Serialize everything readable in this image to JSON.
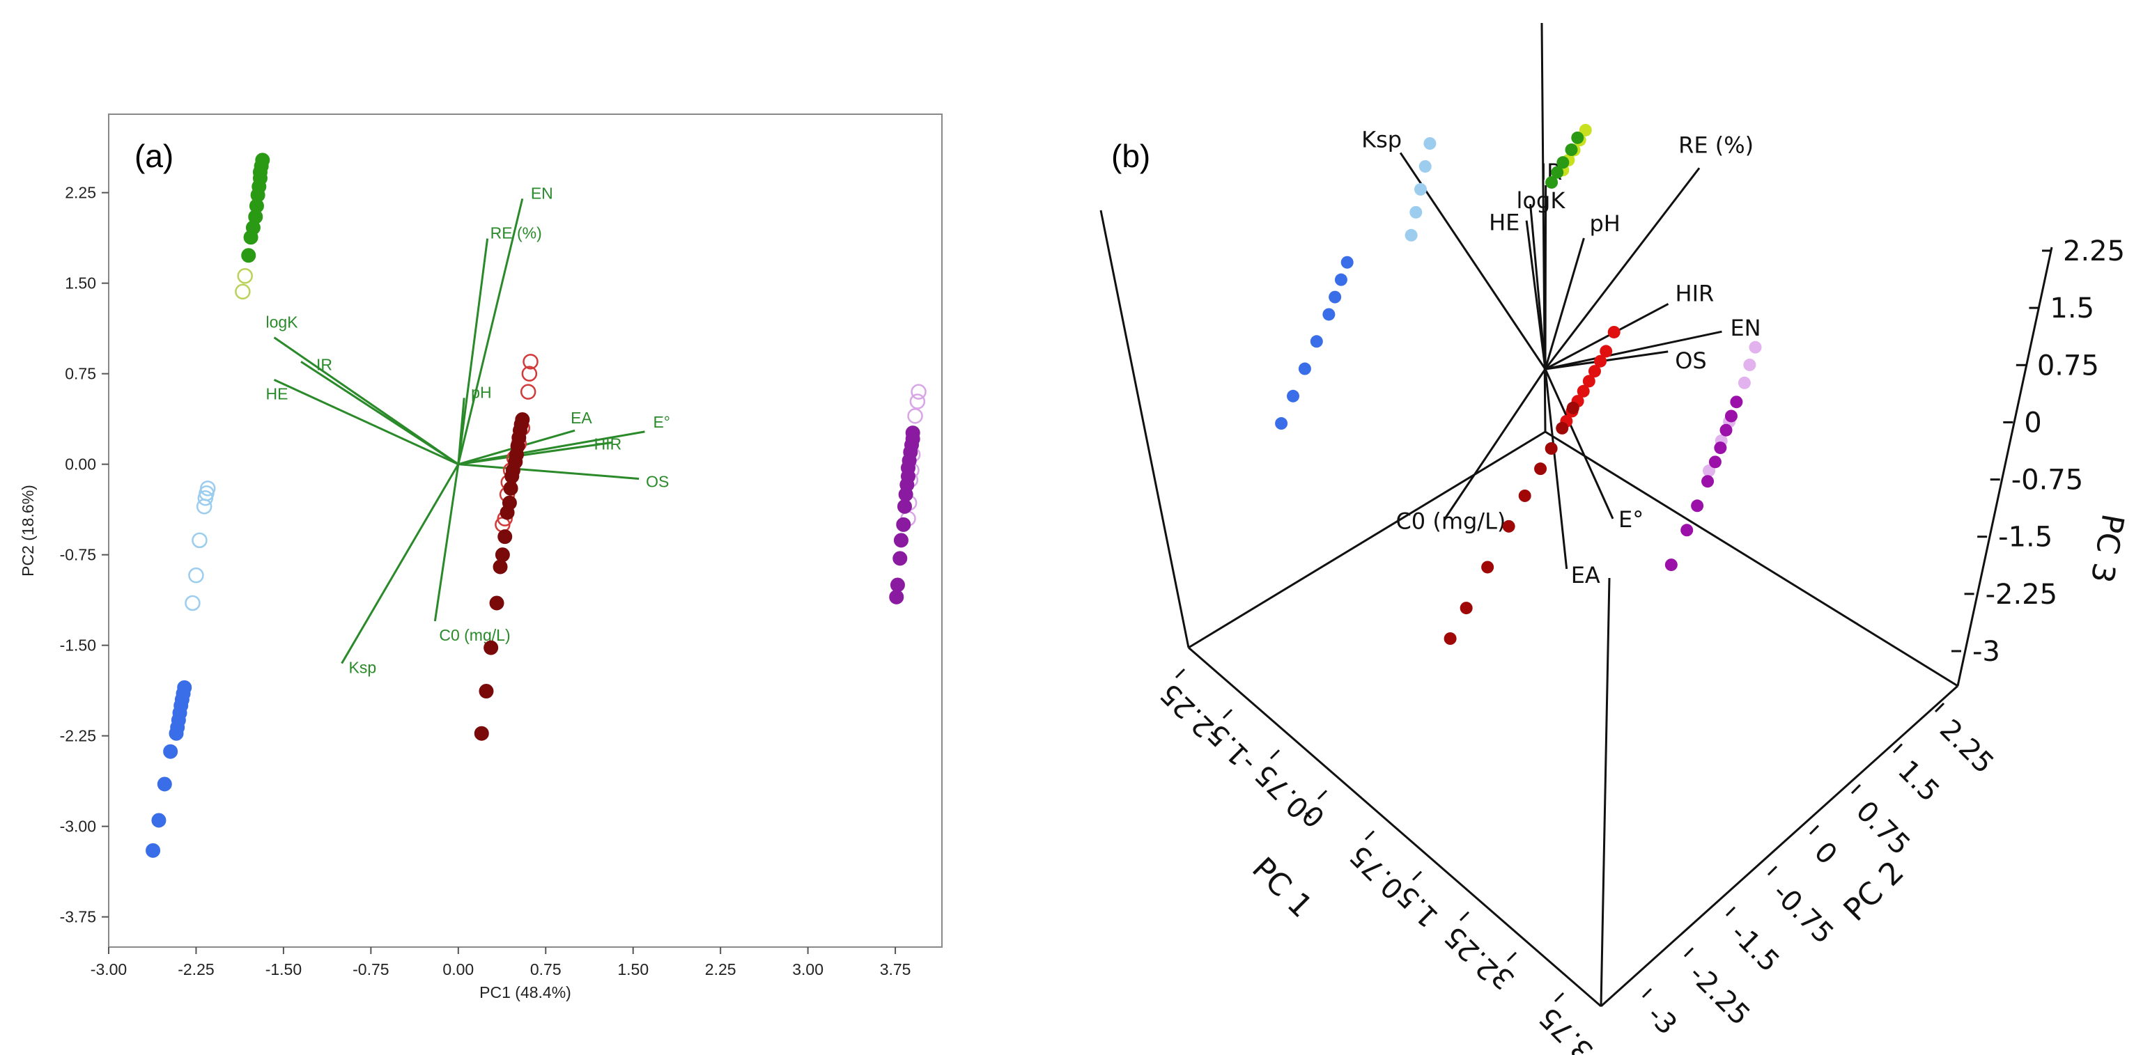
{
  "panel_a_label": "(a)",
  "panel_b_label": "(b)",
  "colors": {
    "green": "#2a9a14",
    "lightgreen": "#b9d25a",
    "red": "#d23a3a",
    "darkred": "#7a0a0a",
    "purple": "#8a1aa0",
    "lightpurple": "#d8a6e6",
    "blue": "#3a6ee8",
    "lightblue": "#9ccdef",
    "loading_green": "#2a8a2a"
  },
  "chart_data": [
    {
      "type": "scatter",
      "title": "(a)",
      "xlabel": "PC1 (48.4%)",
      "ylabel": "PC2 (18.6%)",
      "xlim": [
        -3.0,
        4.15
      ],
      "ylim": [
        -4.0,
        2.9
      ],
      "xticks": [
        "-3.00",
        "-2.25",
        "-1.50",
        "-0.75",
        "0.00",
        "0.75",
        "1.50",
        "2.25",
        "3.00",
        "3.75"
      ],
      "xtick_values": [
        -3.0,
        -2.25,
        -1.5,
        -0.75,
        0.0,
        0.75,
        1.5,
        2.25,
        3.0,
        3.75
      ],
      "yticks": [
        "2.25",
        "1.50",
        "0.75",
        "0.00",
        "-0.75",
        "-1.50",
        "-2.25",
        "-3.00",
        "-3.75"
      ],
      "ytick_values": [
        2.25,
        1.5,
        0.75,
        0.0,
        -0.75,
        -1.5,
        -2.25,
        -3.0,
        -3.75
      ],
      "loadings": [
        {
          "label": "EN",
          "x": 0.55,
          "y": 2.2
        },
        {
          "label": "RE (%)",
          "x": 0.25,
          "y": 1.87
        },
        {
          "label": "logK",
          "x": -1.58,
          "y": 1.05
        },
        {
          "label": "IR",
          "x": -1.35,
          "y": 0.85
        },
        {
          "label": "HE",
          "x": -1.58,
          "y": 0.7
        },
        {
          "label": "pH",
          "x": 0.05,
          "y": 0.55
        },
        {
          "label": "EA",
          "x": 1.0,
          "y": 0.28
        },
        {
          "label": "E°",
          "x": 1.6,
          "y": 0.27
        },
        {
          "label": "HIR",
          "x": 1.32,
          "y": 0.18
        },
        {
          "label": "OS",
          "x": 1.55,
          "y": -0.12
        },
        {
          "label": "C0 (mg/L)",
          "x": -0.2,
          "y": -1.3
        },
        {
          "label": "Ksp",
          "x": -1.0,
          "y": -1.65
        }
      ],
      "series": [
        {
          "name": "green",
          "color": "#2a9a14",
          "filled": true,
          "points": [
            [
              -1.68,
              2.52
            ],
            [
              -1.69,
              2.47
            ],
            [
              -1.7,
              2.42
            ],
            [
              -1.7,
              2.37
            ],
            [
              -1.71,
              2.3
            ],
            [
              -1.72,
              2.23
            ],
            [
              -1.73,
              2.14
            ],
            [
              -1.74,
              2.05
            ],
            [
              -1.76,
              1.96
            ],
            [
              -1.78,
              1.88
            ],
            [
              -1.8,
              1.73
            ]
          ]
        },
        {
          "name": "green-open",
          "color": "#b9d25a",
          "filled": false,
          "points": [
            [
              -1.83,
              1.56
            ],
            [
              -1.85,
              1.43
            ]
          ]
        },
        {
          "name": "red-open",
          "color": "#d23a3a",
          "filled": false,
          "points": [
            [
              0.62,
              0.85
            ],
            [
              0.61,
              0.75
            ],
            [
              0.6,
              0.6
            ],
            [
              0.55,
              0.3
            ],
            [
              0.52,
              0.17
            ],
            [
              0.48,
              0.05
            ],
            [
              0.45,
              -0.05
            ],
            [
              0.43,
              -0.15
            ],
            [
              0.42,
              -0.25
            ],
            [
              0.4,
              -0.45
            ],
            [
              0.38,
              -0.5
            ]
          ]
        },
        {
          "name": "red-dark",
          "color": "#7a0a0a",
          "filled": true,
          "points": [
            [
              0.55,
              0.37
            ],
            [
              0.54,
              0.33
            ],
            [
              0.53,
              0.28
            ],
            [
              0.52,
              0.22
            ],
            [
              0.51,
              0.15
            ],
            [
              0.5,
              0.08
            ],
            [
              0.49,
              0.02
            ],
            [
              0.47,
              -0.05
            ],
            [
              0.46,
              -0.1
            ],
            [
              0.45,
              -0.2
            ],
            [
              0.44,
              -0.32
            ],
            [
              0.42,
              -0.4
            ],
            [
              0.4,
              -0.6
            ],
            [
              0.38,
              -0.75
            ],
            [
              0.36,
              -0.85
            ],
            [
              0.33,
              -1.15
            ],
            [
              0.28,
              -1.52
            ],
            [
              0.24,
              -1.88
            ],
            [
              0.2,
              -2.23
            ]
          ]
        },
        {
          "name": "purple-open",
          "color": "#d8a6e6",
          "filled": false,
          "points": [
            [
              3.95,
              0.6
            ],
            [
              3.94,
              0.52
            ],
            [
              3.92,
              0.4
            ],
            [
              3.9,
              0.08
            ],
            [
              3.89,
              -0.05
            ],
            [
              3.88,
              -0.13
            ],
            [
              3.87,
              -0.32
            ],
            [
              3.86,
              -0.45
            ]
          ]
        },
        {
          "name": "purple",
          "color": "#8a1aa0",
          "filled": true,
          "points": [
            [
              3.9,
              0.26
            ],
            [
              3.9,
              0.21
            ],
            [
              3.89,
              0.16
            ],
            [
              3.88,
              0.1
            ],
            [
              3.87,
              0.03
            ],
            [
              3.86,
              -0.03
            ],
            [
              3.86,
              -0.1
            ],
            [
              3.85,
              -0.17
            ],
            [
              3.84,
              -0.25
            ],
            [
              3.83,
              -0.35
            ],
            [
              3.82,
              -0.5
            ],
            [
              3.8,
              -0.63
            ],
            [
              3.79,
              -0.78
            ],
            [
              3.77,
              -1.0
            ],
            [
              3.76,
              -1.1
            ]
          ]
        },
        {
          "name": "lightblue-open",
          "color": "#9ccdef",
          "filled": false,
          "points": [
            [
              -2.15,
              -0.2
            ],
            [
              -2.16,
              -0.24
            ],
            [
              -2.17,
              -0.28
            ],
            [
              -2.18,
              -0.35
            ],
            [
              -2.22,
              -0.63
            ],
            [
              -2.25,
              -0.92
            ],
            [
              -2.28,
              -1.15
            ]
          ]
        },
        {
          "name": "blue",
          "color": "#3a6ee8",
          "filled": true,
          "points": [
            [
              -2.35,
              -1.85
            ],
            [
              -2.36,
              -1.9
            ],
            [
              -2.37,
              -1.95
            ],
            [
              -2.38,
              -2.0
            ],
            [
              -2.39,
              -2.06
            ],
            [
              -2.4,
              -2.12
            ],
            [
              -2.41,
              -2.18
            ],
            [
              -2.42,
              -2.23
            ],
            [
              -2.47,
              -2.38
            ],
            [
              -2.52,
              -2.65
            ],
            [
              -2.57,
              -2.95
            ],
            [
              -2.62,
              -3.2
            ]
          ]
        }
      ]
    },
    {
      "type": "scatter",
      "title": "(b)",
      "xlabel": "PC 1",
      "ylabel": "PC 2",
      "zlabel": "PC 3",
      "pc1_ticks": [
        "-2.25",
        "-1.5",
        "-0.75",
        "0",
        "0.75",
        "1.5",
        "2.25",
        "3",
        "3.75"
      ],
      "pc1_tick_values": [
        -2.25,
        -1.5,
        -0.75,
        0,
        0.75,
        1.5,
        2.25,
        3,
        3.75
      ],
      "pc2_ticks": [
        "2.25",
        "1.5",
        "0.75",
        "0",
        "-0.75",
        "-1.5",
        "-2.25",
        "-3"
      ],
      "pc2_tick_values": [
        2.25,
        1.5,
        0.75,
        0,
        -0.75,
        -1.5,
        -2.25,
        -3
      ],
      "pc3_ticks": [
        "2.25",
        "1.5",
        "0.75",
        "0",
        "-0.75",
        "-1.5",
        "-2.25",
        "-3"
      ],
      "pc3_tick_values": [
        2.25,
        1.5,
        0.75,
        0,
        -0.75,
        -1.5,
        -2.25,
        -3
      ],
      "loadings": [
        {
          "label": "RE (%)",
          "x": 1.0,
          "y": 1.0,
          "z": 1.6
        },
        {
          "label": "Ksp",
          "x": -1.6,
          "y": -0.3,
          "z": 1.2
        },
        {
          "label": "IR",
          "x": -0.2,
          "y": 0.2,
          "z": 1.3
        },
        {
          "label": "logK",
          "x": -0.3,
          "y": 0.1,
          "z": 1.15
        },
        {
          "label": "HE",
          "x": -0.35,
          "y": 0.1,
          "z": 1.0
        },
        {
          "label": "pH",
          "x": 0.2,
          "y": 0.3,
          "z": 1.0
        },
        {
          "label": "HIR",
          "x": 0.9,
          "y": 0.7,
          "z": 0.6
        },
        {
          "label": "EN",
          "x": 1.4,
          "y": 0.9,
          "z": 0.5
        },
        {
          "label": "OS",
          "x": 1.0,
          "y": 0.6,
          "z": 0.3
        },
        {
          "label": "C0 (mg/L)",
          "x": -0.4,
          "y": -0.9,
          "z": -1.0
        },
        {
          "label": "E°",
          "x": 1.2,
          "y": -0.3,
          "z": -0.6
        },
        {
          "label": "EA",
          "x": 0.9,
          "y": -0.6,
          "z": -1.0
        }
      ],
      "series": [
        {
          "name": "lightblue",
          "color": "#9ccdef",
          "points": [
            [
              -2.2,
              -0.3,
              2.2
            ],
            [
              -2.25,
              -0.35,
              1.9
            ],
            [
              -2.3,
              -0.4,
              1.6
            ],
            [
              -2.35,
              -0.45,
              1.3
            ],
            [
              -2.4,
              -0.5,
              1.0
            ]
          ]
        },
        {
          "name": "blue",
          "color": "#3a6ee8",
          "points": [
            [
              -2.35,
              -1.9,
              1.2
            ],
            [
              -2.38,
              -2.0,
              1.0
            ],
            [
              -2.41,
              -2.1,
              0.8
            ],
            [
              -2.44,
              -2.2,
              0.6
            ],
            [
              -2.5,
              -2.4,
              0.3
            ],
            [
              -2.55,
              -2.6,
              0.0
            ],
            [
              -2.6,
              -2.8,
              -0.3
            ],
            [
              -2.65,
              -3.0,
              -0.6
            ]
          ]
        },
        {
          "name": "yellowgreen",
          "color": "#c8e020",
          "points": [
            [
              -1.7,
              2.5,
              1.5
            ],
            [
              -1.72,
              2.4,
              1.4
            ],
            [
              -1.74,
              2.3,
              1.3
            ],
            [
              -1.76,
              2.2,
              1.2
            ],
            [
              -1.78,
              2.1,
              1.1
            ]
          ]
        },
        {
          "name": "green",
          "color": "#2a9a14",
          "points": [
            [
              -1.72,
              2.35,
              1.45
            ],
            [
              -1.75,
              2.25,
              1.32
            ],
            [
              -1.78,
              2.1,
              1.2
            ],
            [
              -1.8,
              2.0,
              1.1
            ],
            [
              -1.82,
              1.9,
              1.0
            ]
          ]
        },
        {
          "name": "red",
          "color": "#e01010",
          "points": [
            [
              0.62,
              0.85,
              0.4
            ],
            [
              0.6,
              0.7,
              0.2
            ],
            [
              0.58,
              0.6,
              0.1
            ],
            [
              0.56,
              0.5,
              0.0
            ],
            [
              0.54,
              0.4,
              -0.1
            ],
            [
              0.52,
              0.3,
              -0.2
            ],
            [
              0.5,
              0.2,
              -0.3
            ],
            [
              0.48,
              0.1,
              -0.4
            ],
            [
              0.46,
              0.0,
              -0.5
            ]
          ]
        },
        {
          "name": "darkred",
          "color": "#a00808",
          "points": [
            [
              0.5,
              0.1,
              -0.35
            ],
            [
              0.47,
              -0.1,
              -0.55
            ],
            [
              0.44,
              -0.3,
              -0.75
            ],
            [
              0.41,
              -0.5,
              -0.95
            ],
            [
              0.38,
              -0.8,
              -1.2
            ],
            [
              0.34,
              -1.1,
              -1.5
            ],
            [
              0.29,
              -1.5,
              -1.9
            ],
            [
              0.24,
              -1.9,
              -2.3
            ],
            [
              0.2,
              -2.2,
              -2.6
            ]
          ]
        },
        {
          "name": "lightpurple",
          "color": "#e2b2ee",
          "points": [
            [
              3.95,
              0.6,
              1.6
            ],
            [
              3.93,
              0.5,
              1.4
            ],
            [
              3.92,
              0.4,
              1.2
            ],
            [
              3.9,
              0.1,
              0.8
            ],
            [
              3.88,
              -0.05,
              0.6
            ],
            [
              3.87,
              -0.3,
              0.3
            ]
          ]
        },
        {
          "name": "purple",
          "color": "#9a10a8",
          "points": [
            [
              3.9,
              0.25,
              1.0
            ],
            [
              3.89,
              0.15,
              0.85
            ],
            [
              3.88,
              0.05,
              0.7
            ],
            [
              3.86,
              -0.05,
              0.5
            ],
            [
              3.85,
              -0.15,
              0.35
            ],
            [
              3.84,
              -0.3,
              0.15
            ],
            [
              3.82,
              -0.5,
              -0.1
            ],
            [
              3.8,
              -0.7,
              -0.35
            ],
            [
              3.77,
              -1.0,
              -0.7
            ]
          ]
        }
      ]
    }
  ]
}
